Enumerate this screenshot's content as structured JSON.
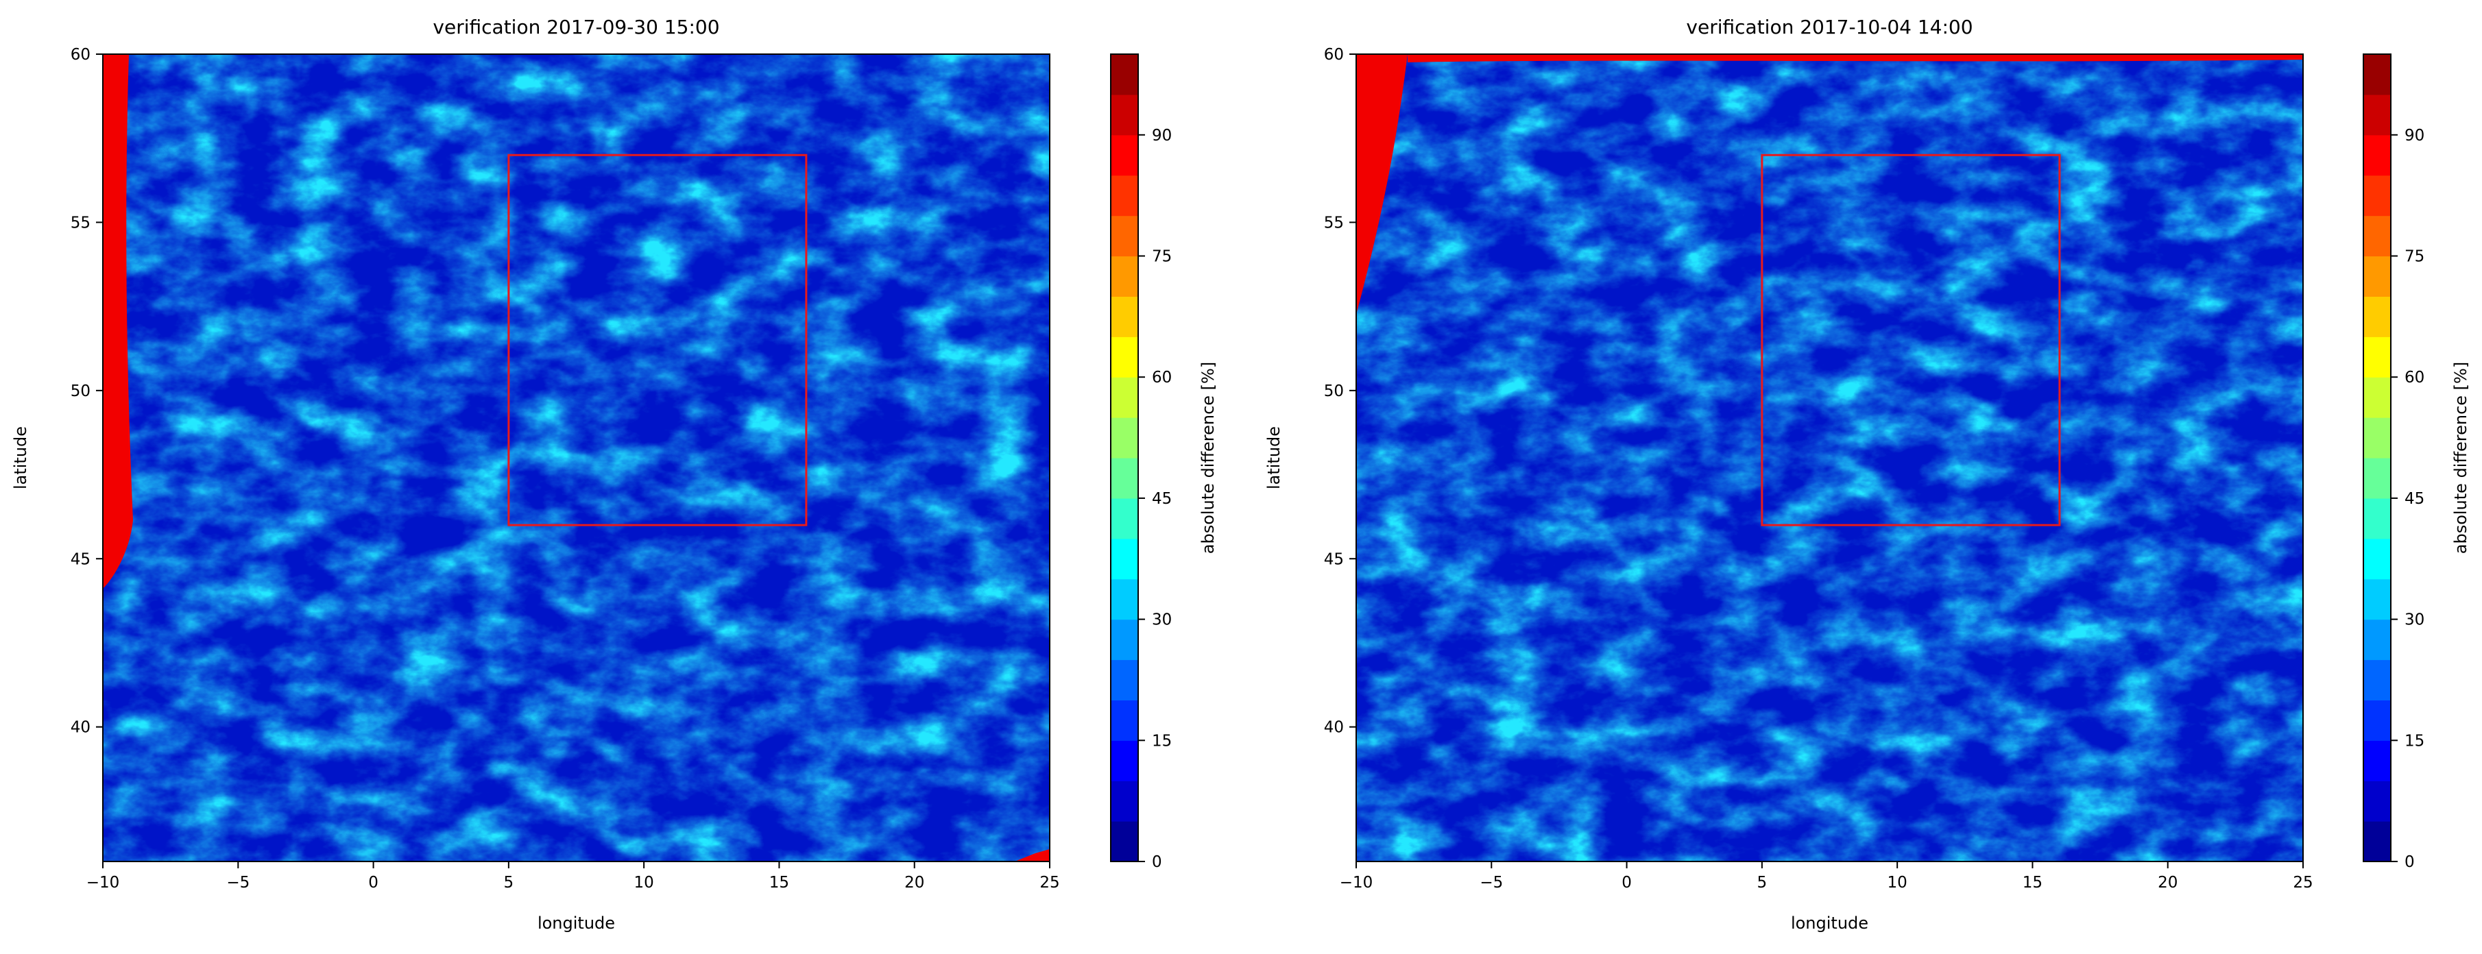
{
  "chart_data": [
    {
      "type": "heatmap",
      "title": "verification 2017-09-30 15:00",
      "xlabel": "longitude",
      "ylabel": "latitude",
      "xlim": [
        -10,
        25
      ],
      "ylim": [
        36,
        60
      ],
      "xticks": [
        -10,
        -5,
        0,
        5,
        10,
        15,
        20,
        25
      ],
      "yticks": [
        40,
        45,
        50,
        55,
        60
      ],
      "grid": false,
      "colorbar": {
        "label": "absolute difference [%]",
        "range": [
          0,
          100
        ],
        "levels": 20,
        "ticks": [
          0,
          15,
          30,
          45,
          60,
          75,
          90
        ],
        "colormap": "jet"
      },
      "annotations": [
        {
          "type": "rectangle",
          "color": "#e8191c",
          "lon": [
            5,
            16
          ],
          "lat": [
            46,
            57
          ]
        }
      ]
    },
    {
      "type": "heatmap",
      "title": "verification 2017-10-04 14:00",
      "xlabel": "longitude",
      "ylabel": "latitude",
      "xlim": [
        -10,
        25
      ],
      "ylim": [
        36,
        60
      ],
      "xticks": [
        -10,
        -5,
        0,
        5,
        10,
        15,
        20,
        25
      ],
      "yticks": [
        40,
        45,
        50,
        55,
        60
      ],
      "grid": false,
      "colorbar": {
        "label": "absolute difference [%]",
        "range": [
          0,
          100
        ],
        "levels": 20,
        "ticks": [
          0,
          15,
          30,
          45,
          60,
          75,
          90
        ],
        "colormap": "jet"
      },
      "annotations": [
        {
          "type": "rectangle",
          "color": "#e8191c",
          "lon": [
            5,
            16
          ],
          "lat": [
            46,
            57
          ]
        }
      ]
    }
  ]
}
